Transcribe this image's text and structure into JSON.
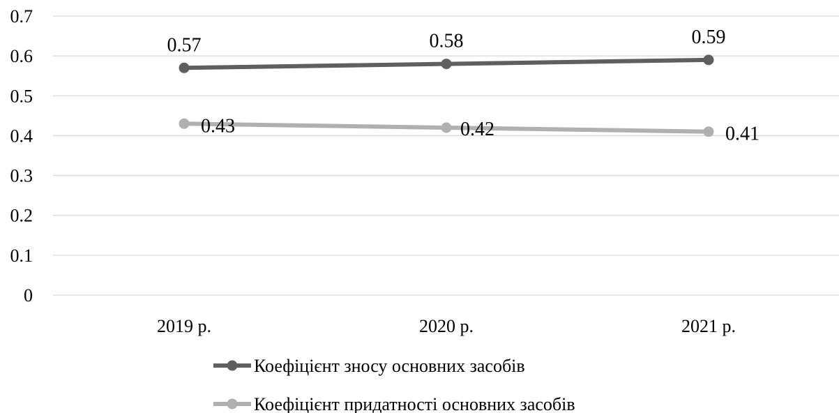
{
  "chart_data": {
    "type": "line",
    "categories": [
      "2019 р.",
      "2020 р.",
      "2021 р."
    ],
    "series": [
      {
        "name": "Коефіцієнт зносу основних засобів",
        "values": [
          0.57,
          0.58,
          0.59
        ],
        "color": "#5f5f5f"
      },
      {
        "name": "Коефіцієнт придатності основних засобів",
        "values": [
          0.43,
          0.42,
          0.41
        ],
        "color": "#b0b0b0"
      }
    ],
    "yticks": [
      "0",
      "0.1",
      "0.2",
      "0.3",
      "0.4",
      "0.5",
      "0.6",
      "0.7"
    ],
    "ylim": [
      0,
      0.7
    ],
    "grid": true,
    "legend_position": "bottom"
  }
}
